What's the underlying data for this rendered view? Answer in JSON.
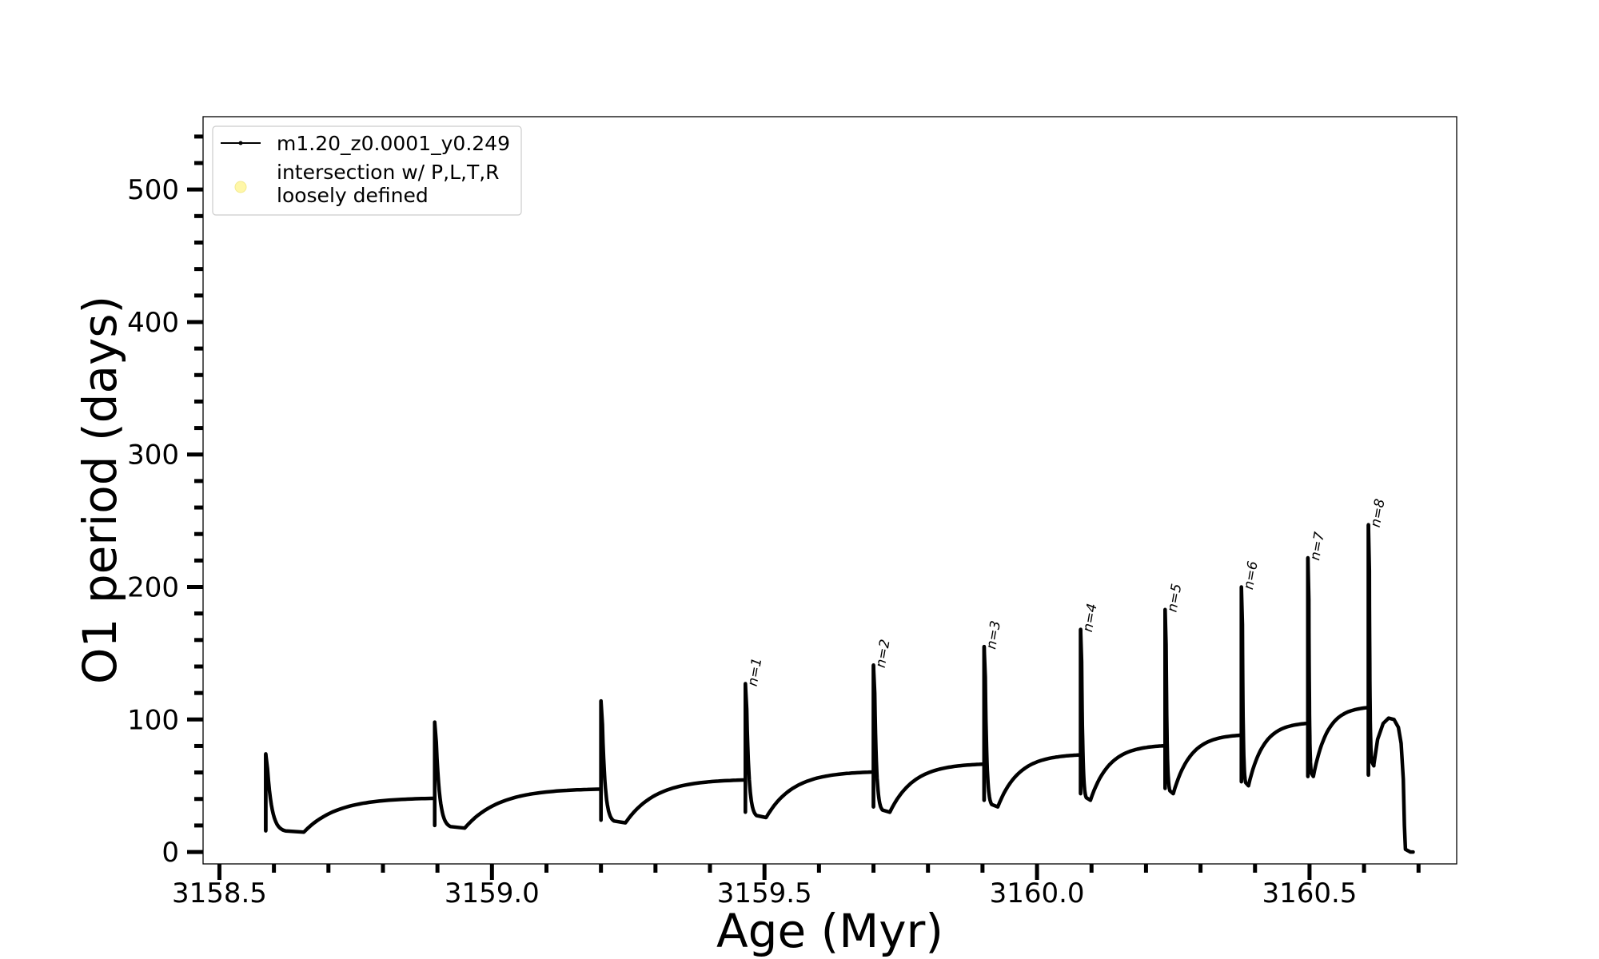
{
  "chart_data": {
    "type": "line",
    "xlabel": "Age (Myr)",
    "ylabel": "O1 period (days)",
    "xlim": [
      3158.47,
      3160.77
    ],
    "ylim": [
      -9,
      555
    ],
    "x_ticks": [
      3158.5,
      3159.0,
      3159.5,
      3160.0,
      3160.5
    ],
    "x_tick_labels": [
      "3158.5",
      "3159.0",
      "3159.5",
      "3160.0",
      "3160.5"
    ],
    "x_minor_step": 0.1,
    "y_ticks": [
      0,
      100,
      200,
      300,
      400,
      500
    ],
    "y_tick_labels": [
      "0",
      "100",
      "200",
      "300",
      "400",
      "500"
    ],
    "y_minor_step": 20,
    "grid": false,
    "legend": {
      "placement": "top-left",
      "entries": [
        {
          "label": "m1.20_z0.0001_y0.249",
          "marker": "line-dot",
          "color": "#000000"
        },
        {
          "label_lines": [
            "intersection w/ P,L,T,R",
            "loosely defined"
          ],
          "marker": "circle",
          "color": "#fff7a8"
        }
      ]
    },
    "series": [
      {
        "name": "m1.20_z0.0001_y0.249",
        "color": "#000000",
        "pulses": [
          {
            "t": 3158.585,
            "peak": 74,
            "pre": 30,
            "low": 16,
            "dip_dt": 0.07,
            "dip": 15,
            "plateau": 41,
            "next": 3158.895
          },
          {
            "t": 3158.895,
            "peak": 98,
            "pre": 40,
            "low": 20,
            "dip_dt": 0.055,
            "dip": 18,
            "plateau": 48,
            "next": 3159.2
          },
          {
            "t": 3159.2,
            "peak": 114,
            "pre": 47,
            "low": 24,
            "dip_dt": 0.045,
            "dip": 22,
            "plateau": 55,
            "next": 3159.465
          },
          {
            "t": 3159.465,
            "peak": 127,
            "pre": 54,
            "low": 30,
            "dip_dt": 0.038,
            "dip": 26,
            "plateau": 61,
            "next": 3159.7
          },
          {
            "t": 3159.7,
            "peak": 141,
            "pre": 61,
            "low": 34,
            "dip_dt": 0.03,
            "dip": 30,
            "plateau": 67,
            "next": 3159.903
          },
          {
            "t": 3159.903,
            "peak": 155,
            "pre": 67,
            "low": 39,
            "dip_dt": 0.025,
            "dip": 34,
            "plateau": 74,
            "next": 3160.08
          },
          {
            "t": 3160.08,
            "peak": 168,
            "pre": 74,
            "low": 44,
            "dip_dt": 0.018,
            "dip": 39,
            "plateau": 81,
            "next": 3160.235
          },
          {
            "t": 3160.235,
            "peak": 183,
            "pre": 81,
            "low": 48,
            "dip_dt": 0.015,
            "dip": 44,
            "plateau": 89,
            "next": 3160.375
          },
          {
            "t": 3160.375,
            "peak": 200,
            "pre": 89,
            "low": 53,
            "dip_dt": 0.013,
            "dip": 50,
            "plateau": 98,
            "next": 3160.497
          },
          {
            "t": 3160.497,
            "peak": 222,
            "pre": 98,
            "low": 57,
            "dip_dt": 0.01,
            "dip": 57,
            "plateau": 110,
            "next": 3160.608
          },
          {
            "t": 3160.608,
            "peak": 247,
            "pre": 110,
            "low": 58,
            "dip_dt": 0.01,
            "dip": 65,
            "plateau": null,
            "next": null
          }
        ],
        "final_bump": [
          [
            3160.618,
            66
          ],
          [
            3160.625,
            85
          ],
          [
            3160.635,
            97
          ],
          [
            3160.645,
            101
          ],
          [
            3160.655,
            100
          ],
          [
            3160.663,
            94
          ],
          [
            3160.668,
            82
          ],
          [
            3160.672,
            55
          ],
          [
            3160.674,
            20
          ],
          [
            3160.676,
            2
          ],
          [
            3160.685,
            0
          ],
          [
            3160.69,
            0
          ]
        ]
      }
    ],
    "annotations": [
      {
        "text": "n=1",
        "x": 3159.465,
        "y": 127
      },
      {
        "text": "n=2",
        "x": 3159.7,
        "y": 141
      },
      {
        "text": "n=3",
        "x": 3159.903,
        "y": 155
      },
      {
        "text": "n=4",
        "x": 3160.08,
        "y": 168
      },
      {
        "text": "n=5",
        "x": 3160.235,
        "y": 183
      },
      {
        "text": "n=6",
        "x": 3160.375,
        "y": 200
      },
      {
        "text": "n=7",
        "x": 3160.497,
        "y": 222
      },
      {
        "text": "n=8",
        "x": 3160.608,
        "y": 247
      }
    ]
  }
}
